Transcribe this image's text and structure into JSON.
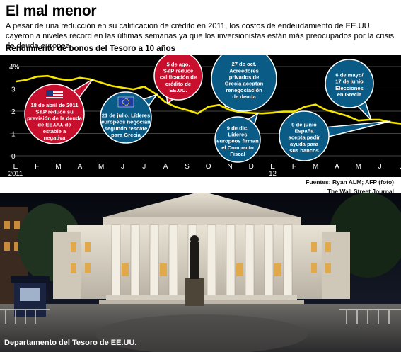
{
  "header": {
    "title": "El mal menor",
    "intro": "A pesar de una reducción en su calificación de crédito en 2011, los costos de endeudamiento de EE.UU. cayeron a niveles récord en las últimas semanas ya que los inversionistas están más preocupados por la crisis de deuda europea."
  },
  "chart_data": {
    "type": "line",
    "title": "Rendimiento de bonos del Tesoro a 10 años",
    "x_unit": "months since 2011-01 (Jan 2011 = 0)",
    "x_tick_labels": [
      "E",
      "F",
      "M",
      "A",
      "M",
      "J",
      "J",
      "A",
      "S",
      "O",
      "N",
      "D",
      "E",
      "F",
      "M",
      "A",
      "M",
      "J",
      "J"
    ],
    "year_labels": [
      {
        "at": 0,
        "label": "2011"
      },
      {
        "at": 12,
        "label": "12"
      }
    ],
    "y_ticks": [
      "0",
      "1",
      "2",
      "3",
      "4%"
    ],
    "ylim": [
      0,
      4
    ],
    "grid": true,
    "series": [
      {
        "color": "#f5e600",
        "points": [
          [
            0,
            3.33
          ],
          [
            0.5,
            3.4
          ],
          [
            1,
            3.55
          ],
          [
            1.5,
            3.58
          ],
          [
            2,
            3.45
          ],
          [
            2.5,
            3.38
          ],
          [
            3,
            3.5
          ],
          [
            3.5,
            3.43
          ],
          [
            4,
            3.28
          ],
          [
            4.5,
            3.13
          ],
          [
            5,
            3.05
          ],
          [
            5.5,
            2.98
          ],
          [
            6,
            3.1
          ],
          [
            6.5,
            2.8
          ],
          [
            7,
            2.4
          ],
          [
            7.5,
            2.18
          ],
          [
            8,
            2.05
          ],
          [
            8.5,
            1.9
          ],
          [
            9,
            2.2
          ],
          [
            9.5,
            2.28
          ],
          [
            10,
            2.05
          ],
          [
            10.5,
            1.95
          ],
          [
            11,
            1.92
          ],
          [
            11.5,
            1.9
          ],
          [
            12,
            1.93
          ],
          [
            12.5,
            1.98
          ],
          [
            13,
            1.98
          ],
          [
            13.5,
            2.2
          ],
          [
            14,
            2.3
          ],
          [
            14.5,
            2.05
          ],
          [
            15,
            1.92
          ],
          [
            15.5,
            1.78
          ],
          [
            16,
            1.58
          ],
          [
            16.5,
            1.62
          ],
          [
            17,
            1.62
          ],
          [
            17.5,
            1.5
          ],
          [
            18,
            1.44
          ],
          [
            18.5,
            1.62
          ]
        ]
      }
    ],
    "annotations": [
      {
        "text": [
          "18 de abril de 2011",
          "S&P reduce su",
          "previsión de la deuda",
          "de EE.UU. de",
          "estable a",
          "negativa"
        ],
        "color": "#c8102e",
        "has_flag": "us-flag-icon"
      },
      {
        "text": [
          "5 de ago.",
          "S&P reduce",
          "calificación de",
          "crédito de",
          "EE.UU."
        ],
        "color": "#c8102e"
      },
      {
        "text": [
          "21 de julio. Líderes",
          "europeos negocian",
          "segundo rescate",
          "para Grecia"
        ],
        "color": "#0a5b86",
        "has_flag": "eu-flag-icon"
      },
      {
        "text": [
          "27 de oct.",
          "Acreedores",
          "privados de",
          "Grecia aceptan",
          "renegociación",
          "de deuda"
        ],
        "color": "#0a5b86"
      },
      {
        "text": [
          "9 de dic.",
          "Líderes",
          "europeos firman",
          "el Compacto",
          "Fiscal"
        ],
        "color": "#0a5b86"
      },
      {
        "text": [
          "6 de mayo/",
          "17 de junio",
          "Elecciones",
          "en Grecia"
        ],
        "color": "#0a5b86"
      },
      {
        "text": [
          "9 de junio",
          "España",
          "acepta pedir",
          "ayuda para",
          "sus bancos"
        ],
        "color": "#0a5b86"
      }
    ]
  },
  "credits": {
    "sources": "Fuentes: Ryan ALM; AFP (foto)",
    "publisher": "The  Wall Street Journal"
  },
  "photo": {
    "caption": "Departamento del Tesoro de EE.UU."
  },
  "colors": {
    "line": "#f5e600",
    "chart_bg": "#000000",
    "red_bubble": "#c8102e",
    "blue_bubble": "#0a5b86"
  }
}
